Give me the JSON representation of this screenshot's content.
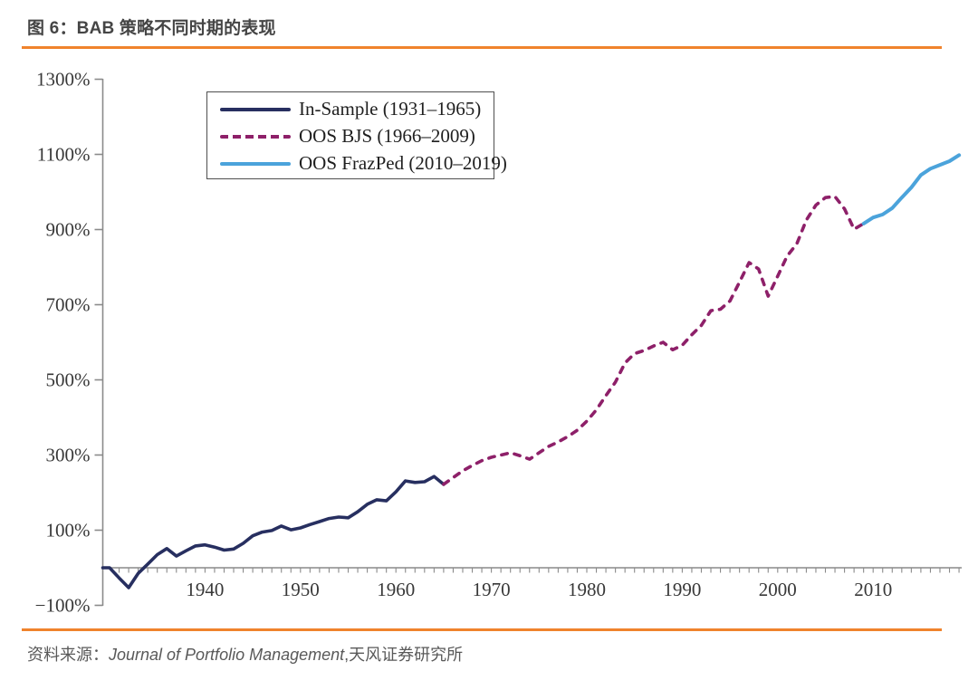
{
  "figure": {
    "title": "图 6：BAB 策略不同时期的表现",
    "source": {
      "prefix": "资料来源：",
      "journal": "Journal of Portfolio Management",
      "separator": ",",
      "org": "天风证券研究所"
    },
    "accent_color": "#F0832C"
  },
  "chart_data": {
    "type": "line",
    "title": "图 6：BAB 策略不同时期的表现",
    "xlabel": "",
    "ylabel": "",
    "grid": false,
    "legend_position": "top-left",
    "xlim": [
      1930,
      2020
    ],
    "ylim": [
      -100,
      1300
    ],
    "y_tick_values": [
      1300,
      1100,
      900,
      700,
      500,
      300,
      100,
      -100
    ],
    "y_tick_labels": [
      "1300%",
      "1100%",
      "900%",
      "700%",
      "500%",
      "300%",
      "100%",
      "−100%"
    ],
    "x_tick_values": [
      1940,
      1950,
      1960,
      1970,
      1980,
      1990,
      2000,
      2010
    ],
    "x_tick_labels": [
      "1940",
      "1950",
      "1960",
      "1970",
      "1980",
      "1990",
      "2000",
      "2010"
    ],
    "axis_color": "#8a8a8a",
    "series": [
      {
        "name": "In-Sample (1931–1965)",
        "style": "solid",
        "color": "#272F60",
        "years": [
          1930,
          1931,
          1932,
          1933,
          1934,
          1935,
          1936,
          1937,
          1938,
          1939,
          1940,
          1941,
          1942,
          1943,
          1944,
          1945,
          1946,
          1947,
          1948,
          1949,
          1950,
          1951,
          1952,
          1953,
          1954,
          1955,
          1956,
          1957,
          1958,
          1959,
          1960,
          1961,
          1962,
          1963,
          1964,
          1965
        ],
        "values": [
          0,
          -27,
          -53,
          -15,
          10,
          35,
          51,
          31,
          45,
          58,
          61,
          55,
          47,
          50,
          65,
          85,
          95,
          99,
          111,
          101,
          106,
          115,
          123,
          131,
          135,
          133,
          149,
          169,
          181,
          178,
          202,
          231,
          227,
          229,
          243,
          222
        ]
      },
      {
        "name": "OOS BJS (1966–2009)",
        "style": "dashed",
        "color": "#8E2069",
        "years": [
          1965,
          1966,
          1967,
          1968,
          1969,
          1970,
          1971,
          1972,
          1973,
          1974,
          1975,
          1976,
          1977,
          1978,
          1979,
          1980,
          1981,
          1982,
          1983,
          1984,
          1985,
          1986,
          1987,
          1988,
          1989,
          1990,
          1991,
          1992,
          1993,
          1994,
          1995,
          1996,
          1997,
          1998,
          1999,
          2000,
          2001,
          2002,
          2003,
          2004,
          2005,
          2006,
          2007,
          2008,
          2009
        ],
        "values": [
          222,
          240,
          258,
          272,
          285,
          294,
          300,
          306,
          298,
          289,
          306,
          323,
          335,
          349,
          366,
          390,
          420,
          458,
          494,
          545,
          570,
          578,
          590,
          600,
          580,
          592,
          620,
          645,
          684,
          688,
          710,
          760,
          812,
          795,
          723,
          776,
          830,
          862,
          925,
          965,
          985,
          988,
          955,
          901,
          916
        ]
      },
      {
        "name": "OOS FrazPed (2010–2019)",
        "style": "solid",
        "color": "#4BA3DB",
        "years": [
          2009,
          2010,
          2011,
          2012,
          2013,
          2014,
          2015,
          2016,
          2017,
          2018,
          2019
        ],
        "values": [
          916,
          932,
          940,
          957,
          985,
          1012,
          1045,
          1062,
          1072,
          1082,
          1098
        ]
      }
    ]
  }
}
